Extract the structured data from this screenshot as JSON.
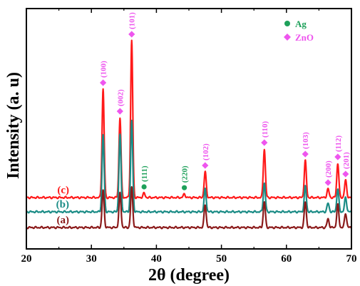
{
  "chart_data": {
    "type": "line",
    "xlabel": "2θ (degree)",
    "ylabel": "Intensity (a. u)",
    "xlim": [
      20,
      70
    ],
    "xticks": [
      20,
      30,
      40,
      50,
      60,
      70
    ],
    "yticks_shown": false,
    "colors": {
      "c": "#ff1a1a",
      "b": "#1b8c86",
      "a": "#8b1a1a",
      "ag": "#1ea05a",
      "zno": "#ee55ee"
    },
    "legend": [
      {
        "name": "Ag",
        "marker": "circle",
        "color": "#1ea05a"
      },
      {
        "name": "ZnO",
        "marker": "diamond",
        "color": "#ee55ee"
      }
    ],
    "series": [
      {
        "name": "(c)",
        "color": "#ff1a1a",
        "baseline": 0.5,
        "peaks": [
          {
            "x": 31.8,
            "h": 3.8
          },
          {
            "x": 34.4,
            "h": 2.8
          },
          {
            "x": 36.2,
            "h": 5.5
          },
          {
            "x": 38.1,
            "h": 0.15
          },
          {
            "x": 44.3,
            "h": 0.12
          },
          {
            "x": 47.5,
            "h": 0.9
          },
          {
            "x": 56.6,
            "h": 1.7
          },
          {
            "x": 62.9,
            "h": 1.3
          },
          {
            "x": 66.4,
            "h": 0.3
          },
          {
            "x": 67.9,
            "h": 1.2
          },
          {
            "x": 69.1,
            "h": 0.6
          }
        ]
      },
      {
        "name": "(b)",
        "color": "#1b8c86",
        "baseline": 0.0,
        "peaks": [
          {
            "x": 31.8,
            "h": 2.7
          },
          {
            "x": 34.4,
            "h": 2.7
          },
          {
            "x": 36.2,
            "h": 3.2
          },
          {
            "x": 47.5,
            "h": 0.8
          },
          {
            "x": 56.6,
            "h": 1.0
          },
          {
            "x": 62.9,
            "h": 0.9
          },
          {
            "x": 66.4,
            "h": 0.3
          },
          {
            "x": 67.9,
            "h": 0.8
          },
          {
            "x": 69.1,
            "h": 0.5
          }
        ]
      },
      {
        "name": "(a)",
        "color": "#8b1a1a",
        "baseline": -0.55,
        "peaks": [
          {
            "x": 31.8,
            "h": 1.3
          },
          {
            "x": 34.4,
            "h": 1.2
          },
          {
            "x": 36.2,
            "h": 1.4
          },
          {
            "x": 47.5,
            "h": 0.8
          },
          {
            "x": 56.6,
            "h": 0.9
          },
          {
            "x": 62.9,
            "h": 0.9
          },
          {
            "x": 66.4,
            "h": 0.3
          },
          {
            "x": 67.9,
            "h": 0.8
          },
          {
            "x": 69.1,
            "h": 0.5
          }
        ]
      }
    ],
    "annotations": [
      {
        "text": "(100)",
        "x": 31.8,
        "phase": "ZnO"
      },
      {
        "text": "(002)",
        "x": 34.4,
        "phase": "ZnO"
      },
      {
        "text": "(101)",
        "x": 36.2,
        "phase": "ZnO"
      },
      {
        "text": "(111)",
        "x": 38.1,
        "phase": "Ag"
      },
      {
        "text": "(220)",
        "x": 44.3,
        "phase": "Ag"
      },
      {
        "text": "(102)",
        "x": 47.5,
        "phase": "ZnO"
      },
      {
        "text": "(110)",
        "x": 56.6,
        "phase": "ZnO"
      },
      {
        "text": "(103)",
        "x": 62.9,
        "phase": "ZnO"
      },
      {
        "text": "(200)",
        "x": 66.4,
        "phase": "ZnO"
      },
      {
        "text": "(112)",
        "x": 67.9,
        "phase": "ZnO"
      },
      {
        "text": "(201)",
        "x": 69.1,
        "phase": "ZnO"
      }
    ]
  }
}
